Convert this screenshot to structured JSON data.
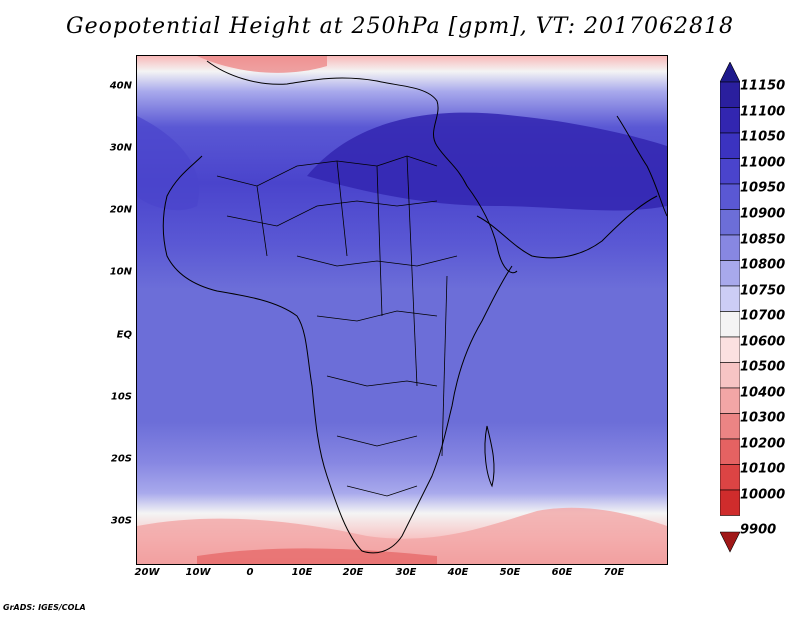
{
  "title": "Geopotential Height at 250hPa [gpm], VT: 2017062818",
  "credit": "GrADS: IGES/COLA",
  "map": {
    "region": "Africa and Middle East",
    "projection": "latlon",
    "lon_range": [
      -23,
      80
    ],
    "lat_range": [
      -37,
      45
    ],
    "lat_ticks": [
      "40N",
      "30N",
      "20N",
      "10N",
      "EQ",
      "10S",
      "20S",
      "30S"
    ],
    "lat_tick_values": [
      40,
      30,
      20,
      10,
      0,
      -10,
      -20,
      -30
    ],
    "lon_ticks": [
      "20W",
      "10W",
      "0",
      "10E",
      "20E",
      "30E",
      "40E",
      "50E",
      "60E",
      "70E"
    ],
    "lon_tick_values": [
      -20,
      -10,
      0,
      10,
      20,
      30,
      40,
      50,
      60,
      70
    ],
    "variable": "Geopotential Height at 250hPa",
    "units": "gpm"
  },
  "colorbar": {
    "levels": [
      "11150",
      "11100",
      "11050",
      "11000",
      "10950",
      "10900",
      "10850",
      "10800",
      "10750",
      "10700",
      "10600",
      "10500",
      "10400",
      "10300",
      "10200",
      "10100",
      "10000",
      "9900"
    ],
    "colors": [
      "#2a1f9e",
      "#3226b0",
      "#3b33c0",
      "#4a44cc",
      "#5a58d4",
      "#6c6ed8",
      "#8787e2",
      "#a8a9ec",
      "#cccdf5",
      "#f4f4f4",
      "#fbe0e0",
      "#f7c4c4",
      "#f2a6a6",
      "#ec8484",
      "#e56262",
      "#dc4444",
      "#cf2c2c",
      "#b01a1a"
    ]
  }
}
